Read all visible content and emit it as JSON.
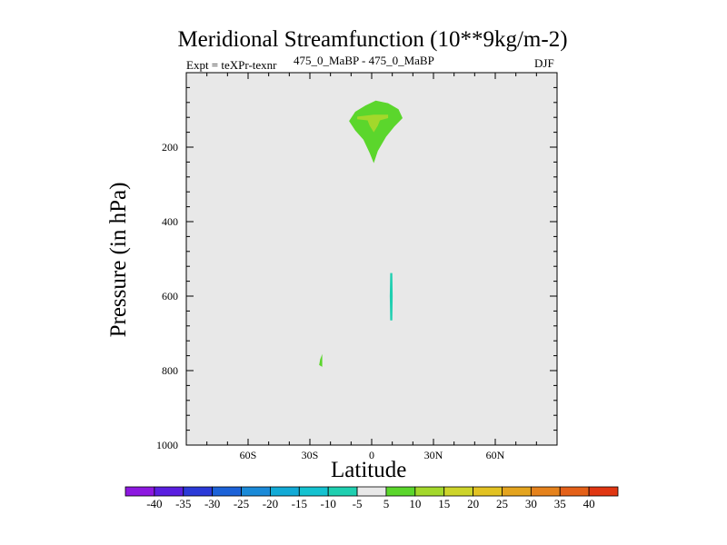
{
  "header": {
    "title": "Meridional Streamfunction (10**9kg/m-2)",
    "experiment": "Expt = teXPr-texnr",
    "subtitle": "475_0_MaBP - 475_0_MaBP",
    "season": "DJF"
  },
  "colors": {
    "background": "#e8e8e8",
    "green_band": "#5bd62c",
    "yellowgreen_band": "#a3d82b",
    "teal_band": "#1fcfb0"
  },
  "chart_data": {
    "type": "contour",
    "title": "Meridional Streamfunction (10**9kg/m-2)",
    "xlabel": "Latitude",
    "ylabel": "Pressure (in hPa)",
    "xlim": [
      -90,
      90
    ],
    "ylim": [
      1000,
      0
    ],
    "y_scale": "linear",
    "y_inverted": true,
    "grid": false,
    "x_ticks": [
      {
        "value": -60,
        "label": "60S"
      },
      {
        "value": -30,
        "label": "30S"
      },
      {
        "value": 0,
        "label": "0"
      },
      {
        "value": 30,
        "label": "30N"
      },
      {
        "value": 60,
        "label": "60N"
      }
    ],
    "y_ticks": [
      {
        "value": 200,
        "label": "200"
      },
      {
        "value": 400,
        "label": "400"
      },
      {
        "value": 600,
        "label": "600"
      },
      {
        "value": 800,
        "label": "800"
      },
      {
        "value": 1000,
        "label": "1000"
      }
    ],
    "colorbar": {
      "position": "bottom",
      "levels": [
        -40,
        -35,
        -30,
        -25,
        -20,
        -15,
        -10,
        -5,
        5,
        10,
        15,
        20,
        25,
        30,
        35,
        40
      ],
      "labels": [
        "-40",
        "-35",
        "-30",
        "-25",
        "-20",
        "-15",
        "-10",
        "-5",
        "5",
        "10",
        "15",
        "20",
        "25",
        "30",
        "35",
        "40"
      ],
      "colors": [
        "#8d18e0",
        "#5a1fe0",
        "#2b3ad8",
        "#1c62d8",
        "#1a8ad8",
        "#12aad6",
        "#14c2d0",
        "#1fcfb0",
        "#e8e8e8",
        "#5bd62c",
        "#a3d82b",
        "#cdd42a",
        "#e2c222",
        "#e4a41f",
        "#e5821c",
        "#e46018",
        "#e03612"
      ]
    },
    "regions": [
      {
        "band": "5 to 10",
        "color": "#5bd62c",
        "polygon": [
          [
            -11,
            130
          ],
          [
            -8,
            105
          ],
          [
            -3,
            88
          ],
          [
            2,
            75
          ],
          [
            8,
            82
          ],
          [
            13,
            98
          ],
          [
            15,
            122
          ],
          [
            11,
            145
          ],
          [
            7,
            172
          ],
          [
            3,
            210
          ],
          [
            1,
            243
          ],
          [
            -1,
            215
          ],
          [
            -4,
            180
          ],
          [
            -8,
            155
          ]
        ]
      },
      {
        "band": "10 to 15",
        "color": "#a3d82b",
        "polygon": [
          [
            -7,
            118
          ],
          [
            1,
            113
          ],
          [
            8,
            113
          ],
          [
            8,
            122
          ],
          [
            4,
            128
          ],
          [
            3,
            142
          ],
          [
            1,
            160
          ],
          [
            -1,
            142
          ],
          [
            -2,
            128
          ],
          [
            -7,
            125
          ]
        ]
      },
      {
        "band": "-10 to -5",
        "color": "#1fcfb0",
        "polygon": [
          [
            9,
            538
          ],
          [
            10,
            538
          ],
          [
            10.2,
            600
          ],
          [
            10,
            665
          ],
          [
            9,
            665
          ],
          [
            8.8,
            600
          ]
        ]
      },
      {
        "band": "5 to 10",
        "color": "#5bd62c",
        "polygon": [
          [
            -25,
            770
          ],
          [
            -24,
            755
          ],
          [
            -24,
            790
          ],
          [
            -25.5,
            785
          ]
        ]
      }
    ]
  }
}
